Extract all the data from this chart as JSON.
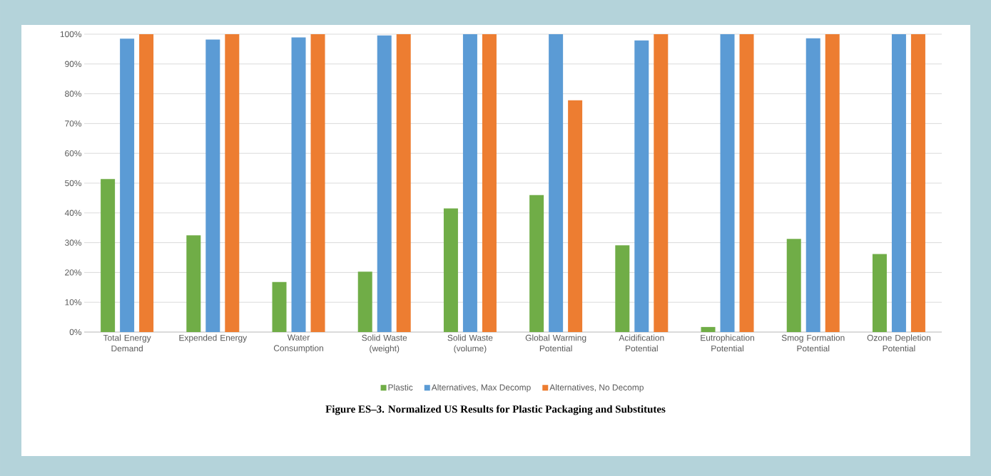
{
  "chart_data": {
    "type": "bar",
    "categories": [
      "Total Energy Demand",
      "Expended Energy",
      "Water Consumption",
      "Solid Waste (weight)",
      "Solid Waste (volume)",
      "Global Warming Potential",
      "Acidification Potential",
      "Eutrophication Potential",
      "Smog Formation Potential",
      "Ozone Depletion Potential"
    ],
    "series": [
      {
        "name": "Plastic",
        "color": "#70ad47",
        "values": [
          51.4,
          32.5,
          16.8,
          20.3,
          41.5,
          46.0,
          29.1,
          1.7,
          31.3,
          26.2
        ]
      },
      {
        "name": "Alternatives, Max Decomp",
        "color": "#5b9bd5",
        "values": [
          98.5,
          98.2,
          98.9,
          99.6,
          100,
          100,
          97.9,
          100,
          98.6,
          100
        ]
      },
      {
        "name": "Alternatives, No Decomp",
        "color": "#ed7d31",
        "values": [
          100,
          100,
          100,
          100,
          100,
          77.8,
          100,
          100,
          100,
          100
        ]
      }
    ],
    "ylim": [
      0,
      100
    ],
    "yticks": [
      {
        "value": 0,
        "label": "0%"
      },
      {
        "value": 10,
        "label": "10%"
      },
      {
        "value": 20,
        "label": "20%"
      },
      {
        "value": 30,
        "label": "30%"
      },
      {
        "value": 40,
        "label": "40%"
      },
      {
        "value": 50,
        "label": "50%"
      },
      {
        "value": 60,
        "label": "60%"
      },
      {
        "value": 70,
        "label": "70%"
      },
      {
        "value": 80,
        "label": "80%"
      },
      {
        "value": 90,
        "label": "90%"
      },
      {
        "value": 100,
        "label": "100%"
      }
    ],
    "grid": "y",
    "legend": "bottom",
    "annotations": [
      "Figure ES–3. Normalized US Results for Plastic Packaging and Substitutes"
    ]
  }
}
